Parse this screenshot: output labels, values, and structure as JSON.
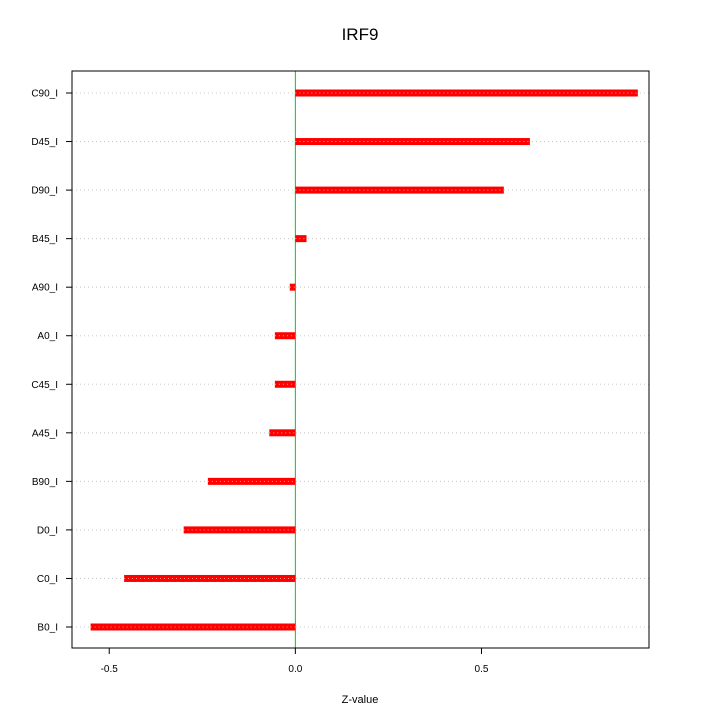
{
  "chart_data": {
    "type": "bar",
    "orientation": "horizontal",
    "title": "IRF9",
    "xlabel": "Z-value",
    "ylabel": "",
    "xlim": [
      -0.6,
      0.95
    ],
    "x_ticks": [
      -0.5,
      0.0,
      0.5
    ],
    "x_tick_labels": [
      "-0.5",
      "0.0",
      "0.5"
    ],
    "grid": "horizontal dotted",
    "categories": [
      "C90_I",
      "D45_I",
      "D90_I",
      "B45_I",
      "A90_I",
      "A0_I",
      "C45_I",
      "A45_I",
      "B90_I",
      "D0_I",
      "C0_I",
      "B0_I"
    ],
    "values": [
      0.92,
      0.63,
      0.56,
      0.03,
      -0.015,
      -0.055,
      -0.055,
      -0.07,
      -0.235,
      -0.3,
      -0.46,
      -0.55
    ],
    "colors": {
      "bar": "#ff0000",
      "zero_line": "#00cc00",
      "grid": "#c8c8c8",
      "axis": "#000000"
    }
  }
}
